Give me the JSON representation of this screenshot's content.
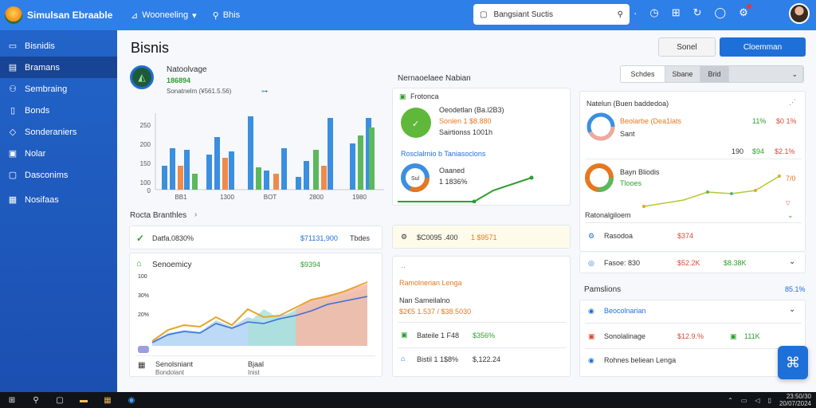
{
  "topbar": {
    "app_title": "Simulsan Ebraable",
    "nav1_label": "Wooneeling",
    "nav2_label": "Bhis",
    "search_placeholder": "Bangsiant Suctis",
    "accent": "#2f7fe8"
  },
  "sidebar": {
    "items": [
      {
        "label": "Bisnidis",
        "icon": "card-icon"
      },
      {
        "label": "Bramans",
        "icon": "document-icon"
      },
      {
        "label": "Sembraing",
        "icon": "people-icon"
      },
      {
        "label": "Bonds",
        "icon": "doc-icon"
      },
      {
        "label": "Sonderaniers",
        "icon": "tag-icon"
      },
      {
        "label": "Nolar",
        "icon": "chart-icon"
      },
      {
        "label": "Dasconims",
        "icon": "folder-icon"
      },
      {
        "label": "Nosifaas",
        "icon": "grid-icon"
      }
    ]
  },
  "header": {
    "title": "Bisnis",
    "cancel_label": "Sonel",
    "primary_label": "Cloemman"
  },
  "kpi": {
    "title": "Natoolvage",
    "value": "186894",
    "sub": "Sonatnelm (¥561.5.56)"
  },
  "bar_chart": {
    "y_ticks": [
      "250",
      "200",
      "150",
      "100",
      "0"
    ],
    "x_ticks": [
      "BB1",
      "1300",
      "BOT",
      "2800",
      "1980"
    ]
  },
  "recent": {
    "title": "Rocta Branthles",
    "row1_left": "Datfa.0830%",
    "row1_value": "$71131,900",
    "row1_right": "Tbdes"
  },
  "economy": {
    "title": "Senoemicy",
    "value": "$9394",
    "y_ticks": [
      "100",
      "30%",
      "20%"
    ],
    "footer_left1": "Senolsniant",
    "footer_left2": "Bondolant",
    "footer_mid1": "Bjaal",
    "footer_mid2": "Inist"
  },
  "mid_col": {
    "header": "Nernaoelaee Nabian",
    "progress_title": "Frotonca",
    "progress_line1": "Oeodetlan (Ba.l2B3)",
    "progress_line2": "Sonlen 1 $8.880",
    "progress_line3": "Sairtionss 1001h",
    "fin_title": "Rosclalrnio b Taniasoclons",
    "fin_ring": "Sul",
    "fin_line1": "Oaaned",
    "fin_line2": "1 1836%",
    "stat_left": "$C0095 .400",
    "stat_right": "1 $9571",
    "recent_title": "Ramolnerian Lenga",
    "recent_sub": "Nan Sameilalno",
    "recent_values": "$2€5 1.537 / $38.5030",
    "row1_label": "Bateile 1 F48",
    "row1_value": "$356%",
    "row2_label": "Bistil 1 1$8%",
    "row2_value": "$,122.24"
  },
  "right_col": {
    "tabs": [
      "Schdes",
      "Sbane",
      "Brid"
    ],
    "panel1_title": "Natelun (Buen baddedoa)",
    "panel1_line1": "Beolarbe (Dea1lats",
    "panel1_line2": "Sant",
    "panel1_v1": "11%",
    "panel1_v2": "$0 1%",
    "panel1_v3": "190",
    "panel1_v4": "$94",
    "panel1_v5": "$2.1%",
    "panel2_title": "Bayn Bliodis",
    "panel2_sub": "Tlooes",
    "panel2_val": "7/0",
    "section_label": "Ratonalgiloem",
    "row1_label": "Rasodoa",
    "row1_value": "$374",
    "row2_label": "Fasoe: 830",
    "row2_value": "$52.2K",
    "row2_value2": "$8.38K",
    "section2": "Pamslions",
    "section2_value": "85.1%",
    "row3_label": "Beocolnarian",
    "row4_label": "Sonolalinage",
    "row4_value": "$12.9.%",
    "row4_value2": "111K",
    "row5_label": "Rohnes beliean Lenga"
  },
  "taskbar": {
    "time": "23:50/30",
    "date": "20/07/2024"
  }
}
